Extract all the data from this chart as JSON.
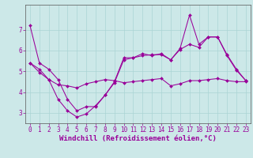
{
  "xlabel": "Windchill (Refroidissement éolien,°C)",
  "background_color": "#cce8e8",
  "line_color": "#990099",
  "xlim": [
    -0.5,
    23.5
  ],
  "ylim": [
    2.5,
    8.2
  ],
  "xticks": [
    0,
    1,
    2,
    3,
    4,
    5,
    6,
    7,
    8,
    9,
    10,
    11,
    12,
    13,
    14,
    15,
    16,
    17,
    18,
    19,
    20,
    21,
    22,
    23
  ],
  "yticks": [
    3,
    4,
    5,
    6,
    7
  ],
  "line1_x": [
    0,
    1,
    2,
    3,
    4,
    5,
    6,
    7,
    8,
    9,
    10,
    11,
    12,
    13,
    14,
    15,
    16,
    17,
    18,
    19,
    20,
    21,
    22,
    23
  ],
  "line1_y": [
    7.2,
    5.4,
    5.1,
    4.6,
    3.65,
    3.1,
    3.3,
    3.3,
    3.85,
    4.5,
    5.65,
    5.65,
    5.75,
    5.8,
    5.8,
    5.55,
    6.1,
    7.7,
    6.3,
    6.65,
    6.65,
    5.8,
    5.1,
    4.55
  ],
  "line2_x": [
    0,
    1,
    2,
    3,
    4,
    5,
    6,
    7,
    8,
    9,
    10,
    11,
    12,
    13,
    14,
    15,
    16,
    17,
    18,
    19,
    20,
    21,
    22,
    23
  ],
  "line2_y": [
    5.4,
    5.1,
    4.6,
    3.65,
    3.1,
    2.8,
    2.95,
    3.35,
    3.85,
    4.45,
    5.55,
    5.65,
    5.85,
    5.75,
    5.85,
    5.55,
    6.05,
    6.3,
    6.15,
    6.65,
    6.65,
    5.75,
    5.05,
    4.55
  ],
  "line3_x": [
    0,
    1,
    2,
    3,
    4,
    5,
    6,
    7,
    8,
    9,
    10,
    11,
    12,
    13,
    14,
    15,
    16,
    17,
    18,
    19,
    20,
    21,
    22,
    23
  ],
  "line3_y": [
    5.4,
    4.95,
    4.6,
    4.35,
    4.3,
    4.2,
    4.4,
    4.5,
    4.6,
    4.55,
    4.45,
    4.5,
    4.55,
    4.6,
    4.65,
    4.3,
    4.4,
    4.55,
    4.55,
    4.6,
    4.65,
    4.55,
    4.5,
    4.5
  ],
  "tick_fontsize": 5.5,
  "xlabel_fontsize": 6.5
}
